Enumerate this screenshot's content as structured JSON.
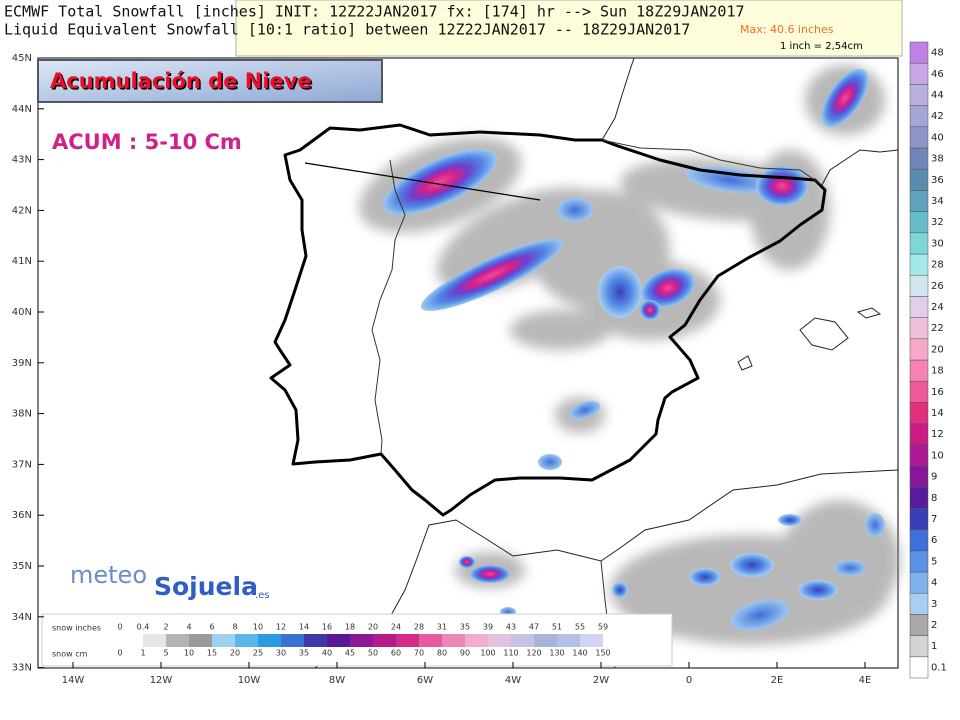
{
  "header": {
    "line1": "ECMWF Total Snowfall [inches] INIT: 12Z22JAN2017 fx: [174] hr --> Sun 18Z29JAN2017",
    "line2": "Liquid Equivalent Snowfall [10:1 ratio] between 12Z22JAN2017 -- 18Z29JAN2017"
  },
  "max_box": {
    "max": "Max: 40.6 inches",
    "conversion": "1 inch = 2,54cm"
  },
  "overlay": {
    "title": "Acumulación de Nieve",
    "accumulation": "ACUM : 5-10 Cm"
  },
  "map": {
    "lat_labels": [
      "45N",
      "44N",
      "43N",
      "42N",
      "41N",
      "40N",
      "39N",
      "38N",
      "37N",
      "36N",
      "35N",
      "34N",
      "33N"
    ],
    "lon_labels": [
      "14W",
      "12W",
      "10W",
      "8W",
      "6W",
      "4W",
      "2W",
      "0",
      "2E",
      "4E"
    ]
  },
  "colorbar": {
    "labels": [
      "0.1",
      "1",
      "2",
      "3",
      "4",
      "5",
      "6",
      "7",
      "8",
      "9",
      "10",
      "12",
      "14",
      "16",
      "18",
      "20",
      "22",
      "24",
      "26",
      "28",
      "30",
      "32",
      "34",
      "36",
      "38",
      "40",
      "42",
      "44",
      "46",
      "48"
    ],
    "colors": [
      "#ffffff",
      "#d4d4d4",
      "#a8a8a8",
      "#a8cff2",
      "#7fb2ec",
      "#5a92e4",
      "#3f6fd8",
      "#3a3cb8",
      "#5a1a9c",
      "#86169a",
      "#ad1a96",
      "#cc1c86",
      "#e2307e",
      "#ee5a98",
      "#f283b2",
      "#f5a8c8",
      "#eec0dc",
      "#e2cdea",
      "#cfe6ef",
      "#a6e8e8",
      "#7fd6d8",
      "#66bcc8",
      "#5ea2bc",
      "#5a8cb0",
      "#6f86b8",
      "#8c94c8",
      "#a6a6d6",
      "#b9b0e0",
      "#c8a8e8",
      "#c080e4"
    ]
  },
  "legend": {
    "inches_title": "snow inches",
    "inches": [
      "0",
      "0.4",
      "2",
      "4",
      "6",
      "8",
      "10",
      "12",
      "14",
      "16",
      "18",
      "20",
      "24",
      "28",
      "31",
      "35",
      "39",
      "43",
      "47",
      "51",
      "55",
      "59"
    ],
    "cm_title": "snow cm",
    "cm": [
      "0",
      "1",
      "5",
      "10",
      "15",
      "20",
      "25",
      "30",
      "35",
      "40",
      "45",
      "50",
      "60",
      "70",
      "80",
      "90",
      "100",
      "110",
      "120",
      "130",
      "140",
      "150"
    ],
    "colors": [
      "#ffffff",
      "#e6e6e6",
      "#b4b4b4",
      "#9a9a9a",
      "#9fd0ef",
      "#5ab8e8",
      "#2a9be0",
      "#3a72d0",
      "#3c3aa8",
      "#5a1896",
      "#8c1896",
      "#b41c8c",
      "#d42a88",
      "#e85aa0",
      "#ec88b6",
      "#eeaecc",
      "#e2c2e0",
      "#c8c2e2",
      "#a8b4d8",
      "#b4c0e6",
      "#d2d4f2"
    ]
  },
  "logo": {
    "meteo": "meteo",
    "sojuela": "Sojuela",
    "es": ".es"
  }
}
